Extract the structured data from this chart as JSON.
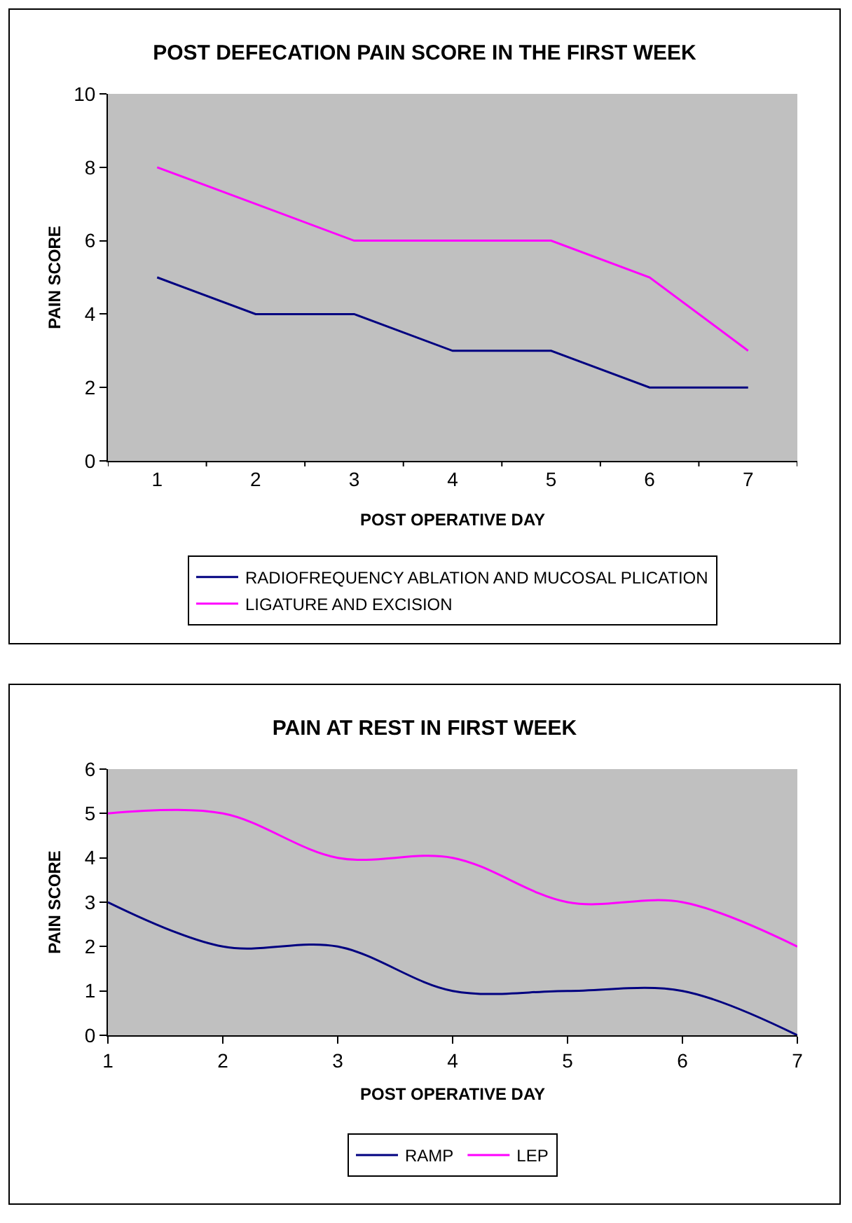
{
  "chart_data": [
    {
      "type": "line",
      "title": "POST DEFECATION PAIN SCORE IN THE FIRST WEEK",
      "xlabel": "POST OPERATIVE DAY",
      "ylabel": "PAIN SCORE",
      "categories": [
        "1",
        "2",
        "3",
        "4",
        "5",
        "6",
        "7"
      ],
      "ylim": [
        0,
        10
      ],
      "yticks": [
        0,
        2,
        4,
        6,
        8,
        10
      ],
      "grid": false,
      "legend": "bottom",
      "marker": "none",
      "line_style": "solid",
      "series": [
        {
          "name": "RADIOFREQUENCY ABLATION AND MUCOSAL PLICATION",
          "color": "#000080",
          "values": [
            5,
            4,
            4,
            3,
            3,
            2,
            2
          ]
        },
        {
          "name": "LIGATURE AND EXCISION",
          "color": "#ff00ff",
          "values": [
            8,
            7,
            6,
            6,
            6,
            5,
            3
          ]
        }
      ]
    },
    {
      "type": "line",
      "title": "PAIN AT REST IN FIRST WEEK",
      "xlabel": "POST OPERATIVE DAY",
      "ylabel": "PAIN SCORE",
      "x": [
        1,
        2,
        3,
        4,
        5,
        6,
        7
      ],
      "xlim": [
        1,
        7
      ],
      "xticks": [
        1,
        2,
        3,
        4,
        5,
        6,
        7
      ],
      "ylim": [
        0,
        6
      ],
      "yticks": [
        0,
        1,
        2,
        3,
        4,
        5,
        6
      ],
      "grid": false,
      "legend": "bottom",
      "marker": "none",
      "line_style": "solid",
      "series": [
        {
          "name": "RAMP",
          "color": "#000080",
          "values": [
            3,
            2,
            2,
            1,
            1,
            1,
            0
          ]
        },
        {
          "name": "LEP",
          "color": "#ff00ff",
          "values": [
            5,
            5,
            4,
            4,
            3,
            3,
            2
          ]
        }
      ]
    }
  ]
}
